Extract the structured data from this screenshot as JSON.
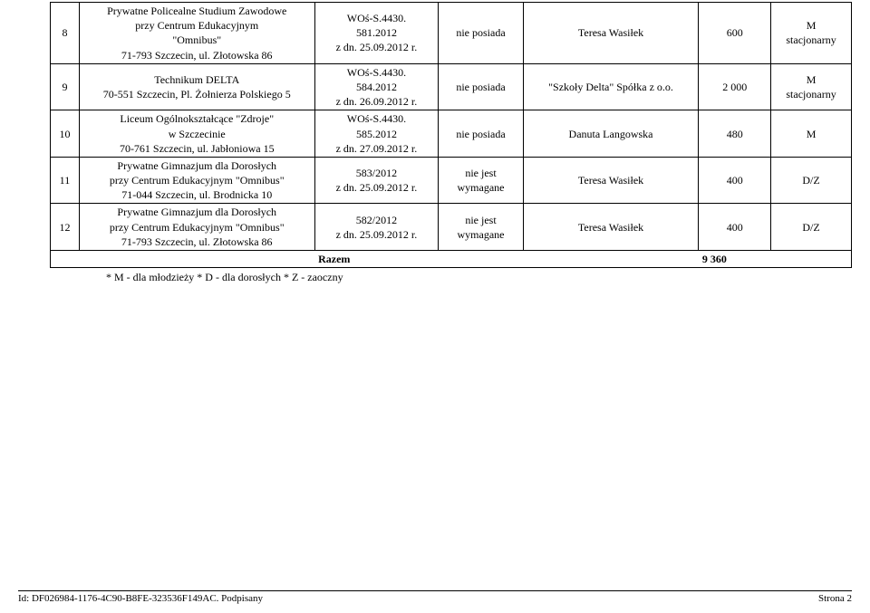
{
  "rows": [
    {
      "num": "8",
      "name": "Prywatne Policealne Studium Zawodowe\nprzy Centrum Edukacyjnym\n\"Omnibus\"\n71-793 Szczecin,  ul. Złotowska 86",
      "doc": "WOś-S.4430.\n581.2012\nz dn. 25.09.2012 r.",
      "c4": "nie posiada",
      "c5": "Teresa Wasiłek",
      "c6": "600",
      "c7": "M\nstacjonarny"
    },
    {
      "num": "9",
      "name": "Technikum DELTA\n70-551 Szczecin, Pl. Żołnierza Polskiego 5",
      "doc": "WOś-S.4430.\n584.2012\nz dn. 26.09.2012 r.",
      "c4": "nie posiada",
      "c5": "\"Szkoły Delta\" Spółka z o.o.",
      "c6": "2 000",
      "c7": "M\nstacjonarny"
    },
    {
      "num": "10",
      "name": "Liceum Ogólnokształcące \"Zdroje\"\nw Szczecinie\n70-761 Szczecin, ul. Jabłoniowa 15",
      "doc": "WOś-S.4430.\n585.2012\nz dn. 27.09.2012 r.",
      "c4": "nie posiada",
      "c5": "Danuta Langowska",
      "c6": "480",
      "c7": "M"
    },
    {
      "num": "11",
      "name": "Prywatne Gimnazjum dla Dorosłych\nprzy Centrum Edukacyjnym \"Omnibus\"\n71-044 Szczecin, ul. Brodnicka 10",
      "doc": "583/2012\nz dn. 25.09.2012 r.",
      "c4": "nie jest\nwymagane",
      "c5": "Teresa Wasiłek",
      "c6": "400",
      "c7": "D/Z"
    },
    {
      "num": "12",
      "name": "Prywatne Gimnazjum dla Dorosłych\nprzy Centrum Edukacyjnym \"Omnibus\"\n71-793 Szczecin, ul. Złotowska 86",
      "doc": "582/2012\nz dn. 25.09.2012 r.",
      "c4": "nie jest\nwymagane",
      "c5": "Teresa Wasiłek",
      "c6": "400",
      "c7": "D/Z"
    }
  ],
  "razem": {
    "label": "Razem",
    "value": "9 360"
  },
  "footnote": "* M - dla młodzieży * D - dla dorosłych * Z - zaoczny",
  "footer": {
    "id": "Id: DF026984-1176-4C90-B8FE-323536F149AC. Podpisany",
    "page": "Strona 2"
  }
}
